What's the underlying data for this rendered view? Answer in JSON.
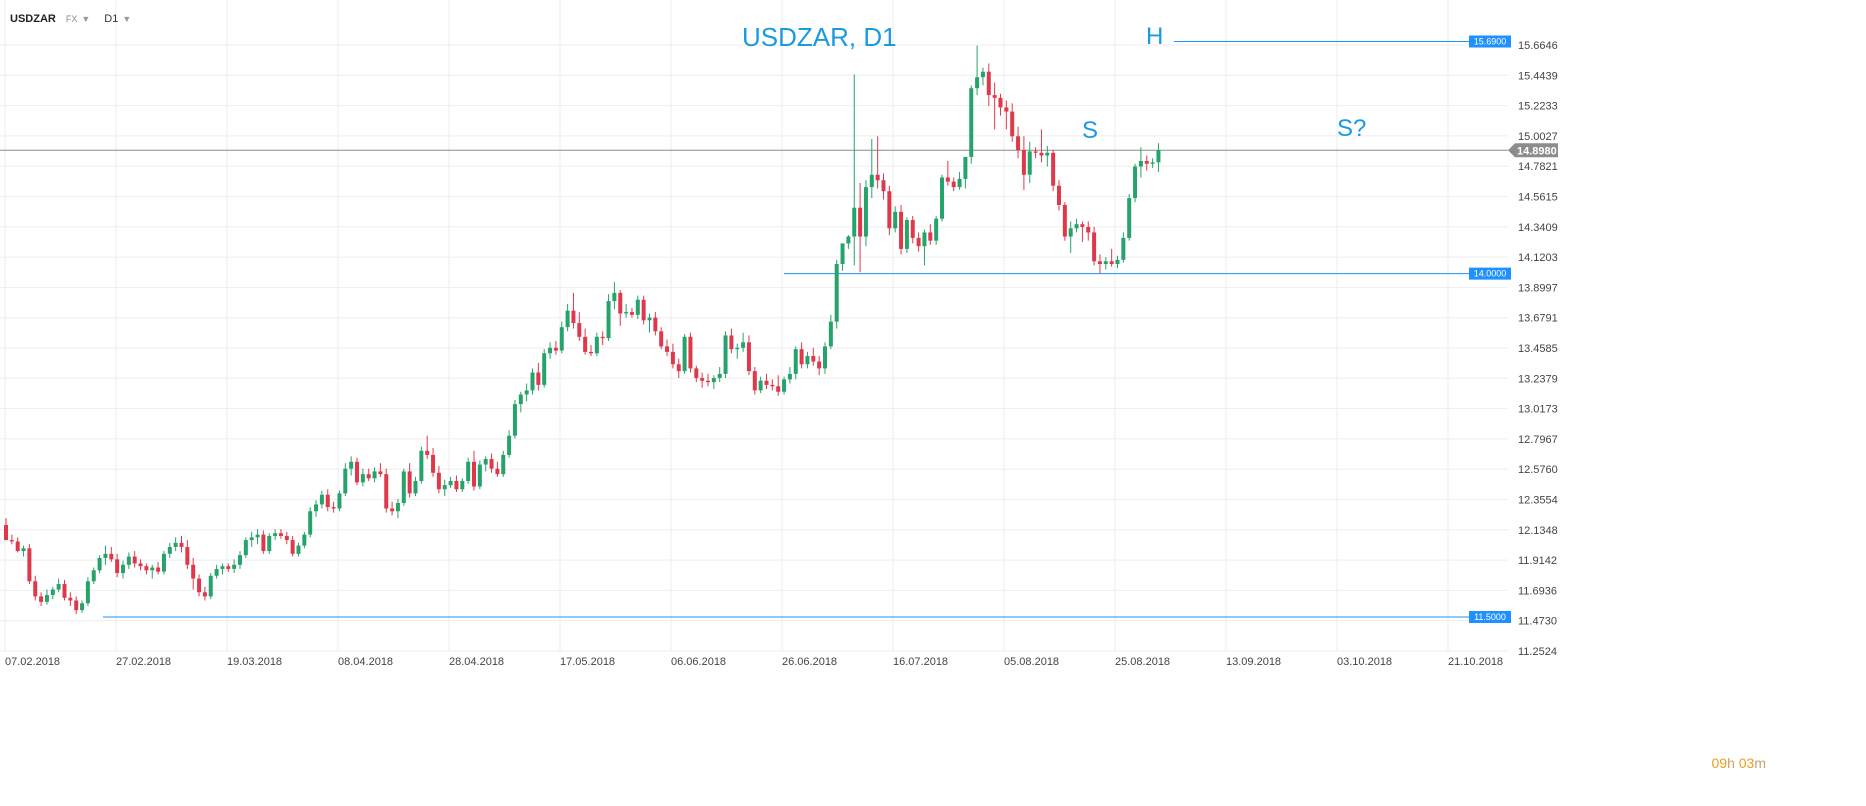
{
  "toolbar": {
    "symbol": "USDZAR",
    "group": "FX",
    "timeframe": "D1",
    "dropdown_icon": "chevron-down-icon"
  },
  "countdown": {
    "hours": "09",
    "hours_unit": "h",
    "minutes": "03",
    "minutes_unit": "m"
  },
  "colors": {
    "bull": "#26a36b",
    "bear": "#e0384b",
    "level": "#1e90ff",
    "annotation": "#1a9be0",
    "current_price_line": "#8c8c8c",
    "current_price_bg": "#8c8c8c",
    "grid": "#eeeeee",
    "axis_text": "#444444"
  },
  "chart_data": {
    "type": "candlestick",
    "title": "USDZAR, D1",
    "y_axis": {
      "side": "right",
      "range": [
        11.2524,
        15.6646
      ],
      "ticks": [
        "15.6646",
        "15.4439",
        "15.2233",
        "15.0027",
        "14.7821",
        "14.5615",
        "14.3409",
        "14.1203",
        "13.8997",
        "13.6791",
        "13.4585",
        "13.2379",
        "13.0173",
        "12.7967",
        "12.5760",
        "12.3554",
        "12.1348",
        "11.9142",
        "11.6936",
        "11.4730",
        "11.2524"
      ]
    },
    "x_axis": {
      "ticks": [
        "07.02.2018",
        "27.02.2018",
        "19.03.2018",
        "08.04.2018",
        "28.04.2018",
        "17.05.2018",
        "06.06.2018",
        "26.06.2018",
        "16.07.2018",
        "05.08.2018",
        "25.08.2018",
        "13.09.2018",
        "03.10.2018",
        "21.10.2018"
      ]
    },
    "grid": true,
    "annotations": [
      "S",
      "H",
      "S?"
    ],
    "levels": [
      "15.6900",
      "14.0000",
      "11.5000"
    ],
    "current_price": "14.8980",
    "candles": [
      [
        12.17,
        12.22,
        12.07,
        12.06
      ],
      [
        12.06,
        12.1,
        12.03,
        12.05
      ],
      [
        12.05,
        12.08,
        11.97,
        11.98
      ],
      [
        11.98,
        12.02,
        11.94,
        12.0
      ],
      [
        12.0,
        12.03,
        11.74,
        11.76
      ],
      [
        11.76,
        11.8,
        11.62,
        11.65
      ],
      [
        11.65,
        11.68,
        11.58,
        11.61
      ],
      [
        11.61,
        11.7,
        11.59,
        11.66
      ],
      [
        11.66,
        11.72,
        11.63,
        11.7
      ],
      [
        11.7,
        11.78,
        11.68,
        11.74
      ],
      [
        11.74,
        11.77,
        11.62,
        11.64
      ],
      [
        11.64,
        11.68,
        11.58,
        11.62
      ],
      [
        11.62,
        11.65,
        11.52,
        11.55
      ],
      [
        11.55,
        11.62,
        11.53,
        11.6
      ],
      [
        11.6,
        11.79,
        11.58,
        11.76
      ],
      [
        11.76,
        11.86,
        11.74,
        11.84
      ],
      [
        11.84,
        11.95,
        11.82,
        11.93
      ],
      [
        11.93,
        12.02,
        11.88,
        11.96
      ],
      [
        11.96,
        12.01,
        11.9,
        11.92
      ],
      [
        11.92,
        11.96,
        11.79,
        11.82
      ],
      [
        11.82,
        11.91,
        11.78,
        11.88
      ],
      [
        11.88,
        11.97,
        11.85,
        11.94
      ],
      [
        11.94,
        11.98,
        11.86,
        11.89
      ],
      [
        11.89,
        11.92,
        11.84,
        11.87
      ],
      [
        11.87,
        11.89,
        11.81,
        11.84
      ],
      [
        11.84,
        11.88,
        11.78,
        11.86
      ],
      [
        11.86,
        11.9,
        11.81,
        11.83
      ],
      [
        11.83,
        11.98,
        11.81,
        11.96
      ],
      [
        11.96,
        12.04,
        11.93,
        12.01
      ],
      [
        12.01,
        12.08,
        11.98,
        12.04
      ],
      [
        12.04,
        12.09,
        11.97,
        12.01
      ],
      [
        12.01,
        12.06,
        11.85,
        11.88
      ],
      [
        11.88,
        11.93,
        11.7,
        11.78
      ],
      [
        11.78,
        11.81,
        11.65,
        11.68
      ],
      [
        11.68,
        11.72,
        11.62,
        11.65
      ],
      [
        11.65,
        11.82,
        11.63,
        11.8
      ],
      [
        11.8,
        11.88,
        11.78,
        11.85
      ],
      [
        11.85,
        11.89,
        11.81,
        11.87
      ],
      [
        11.87,
        11.89,
        11.83,
        11.85
      ],
      [
        11.85,
        11.92,
        11.82,
        11.88
      ],
      [
        11.88,
        11.98,
        11.85,
        11.95
      ],
      [
        11.95,
        12.08,
        11.93,
        12.06
      ],
      [
        12.06,
        12.12,
        12.01,
        12.08
      ],
      [
        12.08,
        12.14,
        12.03,
        12.1
      ],
      [
        12.1,
        12.13,
        11.96,
        11.98
      ],
      [
        11.98,
        12.11,
        11.96,
        12.09
      ],
      [
        12.09,
        12.14,
        12.06,
        12.11
      ],
      [
        12.11,
        12.14,
        12.07,
        12.09
      ],
      [
        12.09,
        12.12,
        12.03,
        12.06
      ],
      [
        12.06,
        12.09,
        11.94,
        11.96
      ],
      [
        11.96,
        12.04,
        11.94,
        12.02
      ],
      [
        12.02,
        12.12,
        12.0,
        12.1
      ],
      [
        12.1,
        12.3,
        12.08,
        12.27
      ],
      [
        12.27,
        12.35,
        12.23,
        12.32
      ],
      [
        12.32,
        12.42,
        12.29,
        12.39
      ],
      [
        12.39,
        12.43,
        12.27,
        12.3
      ],
      [
        12.3,
        12.34,
        12.26,
        12.29
      ],
      [
        12.29,
        12.42,
        12.27,
        12.4
      ],
      [
        12.4,
        12.62,
        12.38,
        12.58
      ],
      [
        12.58,
        12.67,
        12.53,
        12.63
      ],
      [
        12.63,
        12.66,
        12.46,
        12.48
      ],
      [
        12.48,
        12.58,
        12.45,
        12.54
      ],
      [
        12.54,
        12.58,
        12.49,
        12.51
      ],
      [
        12.51,
        12.59,
        12.48,
        12.56
      ],
      [
        12.56,
        12.62,
        12.52,
        12.54
      ],
      [
        12.54,
        12.58,
        12.26,
        12.29
      ],
      [
        12.29,
        12.34,
        12.24,
        12.27
      ],
      [
        12.27,
        12.36,
        12.22,
        12.33
      ],
      [
        12.33,
        12.58,
        12.31,
        12.56
      ],
      [
        12.56,
        12.62,
        12.37,
        12.4
      ],
      [
        12.4,
        12.52,
        12.38,
        12.49
      ],
      [
        12.49,
        12.74,
        12.47,
        12.71
      ],
      [
        12.71,
        12.82,
        12.65,
        12.68
      ],
      [
        12.68,
        12.73,
        12.52,
        12.55
      ],
      [
        12.55,
        12.6,
        12.4,
        12.43
      ],
      [
        12.43,
        12.5,
        12.38,
        12.46
      ],
      [
        12.46,
        12.52,
        12.44,
        12.49
      ],
      [
        12.49,
        12.53,
        12.41,
        12.43
      ],
      [
        12.43,
        12.51,
        12.41,
        12.49
      ],
      [
        12.49,
        12.66,
        12.47,
        12.63
      ],
      [
        12.63,
        12.71,
        12.42,
        12.45
      ],
      [
        12.45,
        12.64,
        12.43,
        12.61
      ],
      [
        12.61,
        12.67,
        12.56,
        12.65
      ],
      [
        12.65,
        12.69,
        12.55,
        12.58
      ],
      [
        12.58,
        12.63,
        12.52,
        12.54
      ],
      [
        12.54,
        12.71,
        12.52,
        12.68
      ],
      [
        12.68,
        12.86,
        12.66,
        12.82
      ],
      [
        12.82,
        13.08,
        12.8,
        13.05
      ],
      [
        13.05,
        13.14,
        12.99,
        13.12
      ],
      [
        13.12,
        13.2,
        13.07,
        13.15
      ],
      [
        13.15,
        13.31,
        13.12,
        13.28
      ],
      [
        13.28,
        13.35,
        13.15,
        13.19
      ],
      [
        13.19,
        13.45,
        13.17,
        13.42
      ],
      [
        13.42,
        13.5,
        13.38,
        13.46
      ],
      [
        13.46,
        13.51,
        13.41,
        13.44
      ],
      [
        13.44,
        13.65,
        13.42,
        13.61
      ],
      [
        13.61,
        13.78,
        13.58,
        13.73
      ],
      [
        13.73,
        13.86,
        13.6,
        13.64
      ],
      [
        13.64,
        13.72,
        13.51,
        13.54
      ],
      [
        13.54,
        13.6,
        13.41,
        13.43
      ],
      [
        13.43,
        13.48,
        13.4,
        13.42
      ],
      [
        13.42,
        13.57,
        13.4,
        13.54
      ],
      [
        13.54,
        13.58,
        13.48,
        13.53
      ],
      [
        13.53,
        13.85,
        13.51,
        13.8
      ],
      [
        13.8,
        13.94,
        13.74,
        13.86
      ],
      [
        13.86,
        13.88,
        13.62,
        13.71
      ],
      [
        13.71,
        13.78,
        13.68,
        13.72
      ],
      [
        13.72,
        13.75,
        13.68,
        13.7
      ],
      [
        13.7,
        13.84,
        13.67,
        13.81
      ],
      [
        13.81,
        13.84,
        13.63,
        13.66
      ],
      [
        13.66,
        13.71,
        13.57,
        13.68
      ],
      [
        13.68,
        13.72,
        13.55,
        13.58
      ],
      [
        13.58,
        13.61,
        13.45,
        13.47
      ],
      [
        13.47,
        13.52,
        13.4,
        13.43
      ],
      [
        13.43,
        13.49,
        13.31,
        13.34
      ],
      [
        13.34,
        13.38,
        13.24,
        13.29
      ],
      [
        13.29,
        13.56,
        13.27,
        13.54
      ],
      [
        13.54,
        13.57,
        13.28,
        13.31
      ],
      [
        13.31,
        13.33,
        13.21,
        13.24
      ],
      [
        13.24,
        13.28,
        13.17,
        13.22
      ],
      [
        13.22,
        13.27,
        13.18,
        13.21
      ],
      [
        13.21,
        13.26,
        13.16,
        13.24
      ],
      [
        13.24,
        13.32,
        13.21,
        13.27
      ],
      [
        13.27,
        13.58,
        13.24,
        13.55
      ],
      [
        13.55,
        13.6,
        13.42,
        13.45
      ],
      [
        13.45,
        13.49,
        13.38,
        13.46
      ],
      [
        13.46,
        13.57,
        13.43,
        13.5
      ],
      [
        13.5,
        13.55,
        13.26,
        13.29
      ],
      [
        13.29,
        13.32,
        13.12,
        13.15
      ],
      [
        13.15,
        13.25,
        13.13,
        13.22
      ],
      [
        13.22,
        13.27,
        13.16,
        13.19
      ],
      [
        13.19,
        13.23,
        13.15,
        13.18
      ],
      [
        13.18,
        13.26,
        13.11,
        13.14
      ],
      [
        13.14,
        13.25,
        13.12,
        13.23
      ],
      [
        13.23,
        13.32,
        13.2,
        13.27
      ],
      [
        13.27,
        13.47,
        13.23,
        13.45
      ],
      [
        13.45,
        13.5,
        13.31,
        13.34
      ],
      [
        13.34,
        13.43,
        13.31,
        13.4
      ],
      [
        13.4,
        13.46,
        13.33,
        13.36
      ],
      [
        13.36,
        13.4,
        13.26,
        13.31
      ],
      [
        13.31,
        13.5,
        13.27,
        13.47
      ],
      [
        13.47,
        13.7,
        13.45,
        13.65
      ],
      [
        13.65,
        14.1,
        13.6,
        14.07
      ],
      [
        14.07,
        14.2,
        14.02,
        14.22
      ],
      [
        14.22,
        14.28,
        14.18,
        14.27
      ],
      [
        14.27,
        15.45,
        14.06,
        14.48
      ],
      [
        14.48,
        14.66,
        14.01,
        14.27
      ],
      [
        14.27,
        14.68,
        14.2,
        14.63
      ],
      [
        14.63,
        14.98,
        14.55,
        14.72
      ],
      [
        14.72,
        15.0,
        14.62,
        14.68
      ],
      [
        14.68,
        14.73,
        14.54,
        14.6
      ],
      [
        14.6,
        14.64,
        14.28,
        14.33
      ],
      [
        14.33,
        14.49,
        14.3,
        14.45
      ],
      [
        14.45,
        14.5,
        14.14,
        14.18
      ],
      [
        14.18,
        14.41,
        14.15,
        14.39
      ],
      [
        14.39,
        14.42,
        14.22,
        14.26
      ],
      [
        14.26,
        14.3,
        14.16,
        14.2
      ],
      [
        14.2,
        14.32,
        14.06,
        14.3
      ],
      [
        14.3,
        14.36,
        14.21,
        14.24
      ],
      [
        14.24,
        14.42,
        14.21,
        14.4
      ],
      [
        14.4,
        14.72,
        14.38,
        14.7
      ],
      [
        14.7,
        14.82,
        14.64,
        14.67
      ],
      [
        14.67,
        14.7,
        14.6,
        14.63
      ],
      [
        14.63,
        14.74,
        14.61,
        14.69
      ],
      [
        14.69,
        14.84,
        14.62,
        14.85
      ],
      [
        14.85,
        15.37,
        14.8,
        15.35
      ],
      [
        15.35,
        15.66,
        15.3,
        15.43
      ],
      [
        15.43,
        15.5,
        15.37,
        15.47
      ],
      [
        15.47,
        15.53,
        15.22,
        15.3
      ],
      [
        15.3,
        15.39,
        15.05,
        15.28
      ],
      [
        15.28,
        15.31,
        15.15,
        15.21
      ],
      [
        15.21,
        15.26,
        15.05,
        15.18
      ],
      [
        15.18,
        15.24,
        14.96,
        15.0
      ],
      [
        15.0,
        15.07,
        14.84,
        14.9
      ],
      [
        14.9,
        15.0,
        14.61,
        14.72
      ],
      [
        14.72,
        14.96,
        14.66,
        14.89
      ],
      [
        14.89,
        14.92,
        14.84,
        14.88
      ],
      [
        14.88,
        15.05,
        14.81,
        14.86
      ],
      [
        14.86,
        14.93,
        14.78,
        14.88
      ],
      [
        14.88,
        14.9,
        14.6,
        14.64
      ],
      [
        14.64,
        14.68,
        14.46,
        14.5
      ],
      [
        14.5,
        14.52,
        14.24,
        14.27
      ],
      [
        14.27,
        14.38,
        14.15,
        14.33
      ],
      [
        14.33,
        14.4,
        14.3,
        14.36
      ],
      [
        14.36,
        14.38,
        14.23,
        14.34
      ],
      [
        14.34,
        14.38,
        14.24,
        14.3
      ],
      [
        14.3,
        14.34,
        14.06,
        14.09
      ],
      [
        14.09,
        14.14,
        14.0,
        14.07
      ],
      [
        14.07,
        14.12,
        14.03,
        14.09
      ],
      [
        14.09,
        14.18,
        14.05,
        14.07
      ],
      [
        14.07,
        14.13,
        14.04,
        14.1
      ],
      [
        14.1,
        14.3,
        14.08,
        14.26
      ],
      [
        14.26,
        14.58,
        14.24,
        14.55
      ],
      [
        14.55,
        14.8,
        14.52,
        14.78
      ],
      [
        14.78,
        14.92,
        14.7,
        14.82
      ],
      [
        14.82,
        14.86,
        14.75,
        14.8
      ],
      [
        14.8,
        14.84,
        14.77,
        14.81
      ],
      [
        14.81,
        14.95,
        14.74,
        14.9
      ]
    ]
  }
}
